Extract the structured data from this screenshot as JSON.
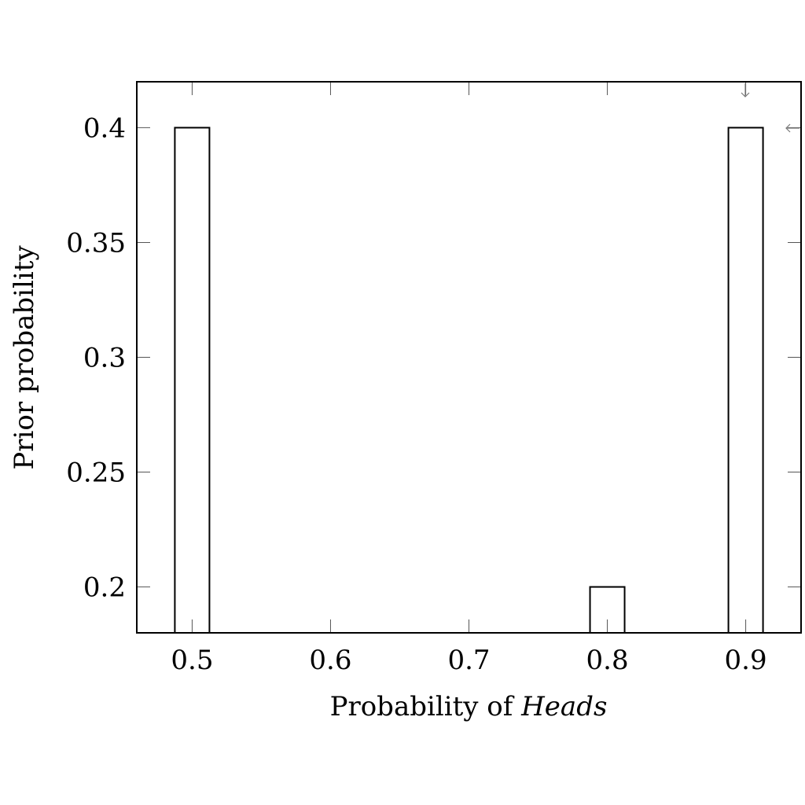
{
  "chart_data": {
    "type": "bar",
    "x": [
      0.5,
      0.8,
      0.9
    ],
    "values": [
      0.4,
      0.2,
      0.4
    ],
    "xlabel": "Probability of",
    "xlabel_italic": "Heads",
    "ylabel": "Prior probability",
    "xlim": [
      0.46,
      0.94
    ],
    "ylim": [
      0.18,
      0.42
    ],
    "xticks": [
      "0.5",
      "0.6",
      "0.7",
      "0.8",
      "0.9"
    ],
    "yticks": [
      "0.2",
      "0.25",
      "0.3",
      "0.35",
      "0.4"
    ],
    "bar_width": 0.025,
    "grid": false
  }
}
